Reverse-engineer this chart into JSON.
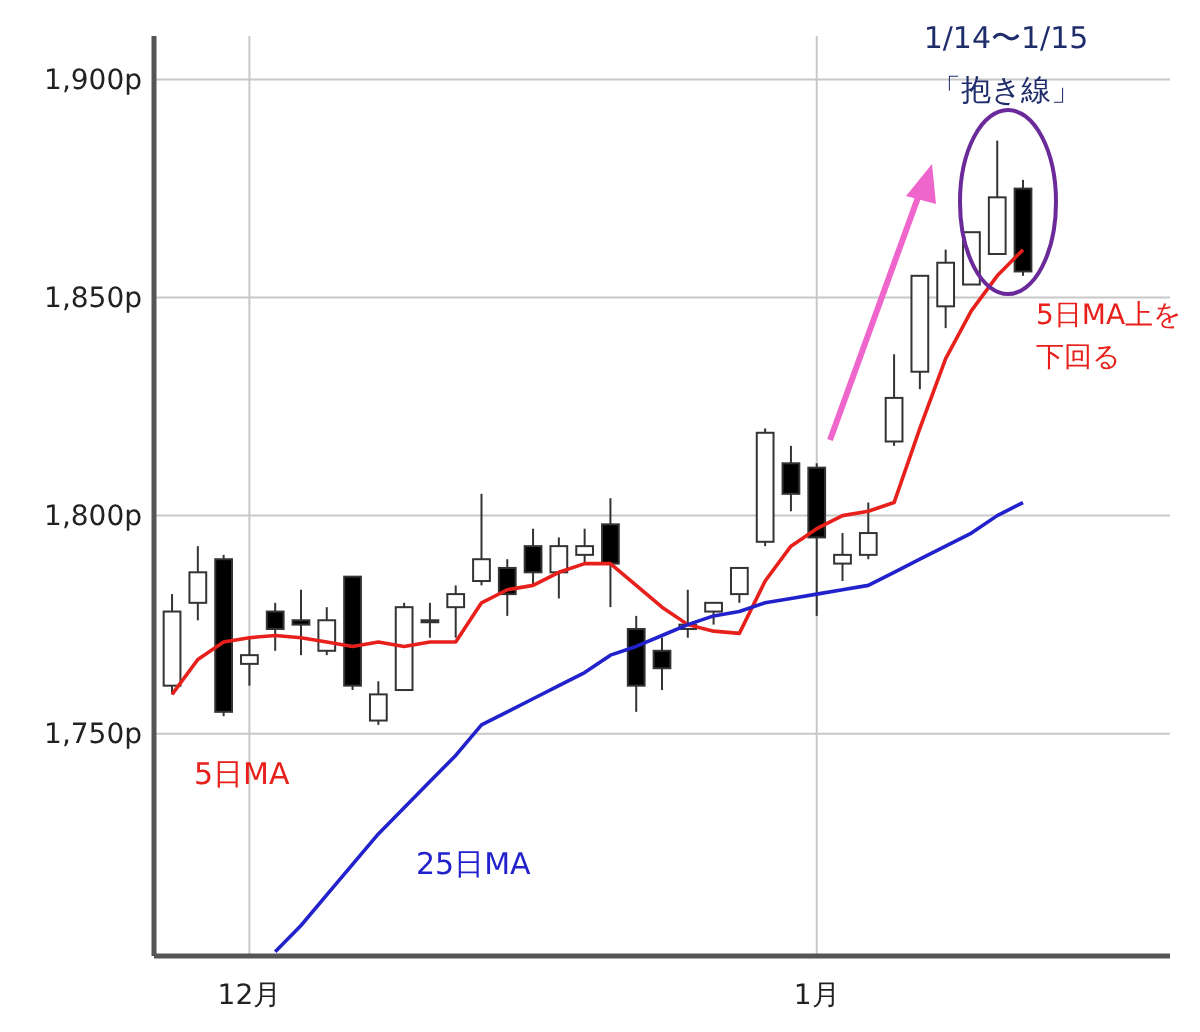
{
  "chart_data": {
    "type": "candlestick",
    "categories": [
      null,
      null,
      null,
      "12月",
      null,
      null,
      null,
      null,
      null,
      null,
      null,
      null,
      null,
      null,
      null,
      null,
      null,
      null,
      null,
      null,
      null,
      null,
      null,
      null,
      null,
      "1月",
      null,
      null,
      null,
      null,
      null,
      null,
      null,
      null
    ],
    "ohlc": [
      [
        1761,
        1782,
        1759,
        1778
      ],
      [
        1780,
        1793,
        1776,
        1787
      ],
      [
        1790,
        1791,
        1754,
        1755
      ],
      [
        1766,
        1772,
        1761,
        1768
      ],
      [
        1778,
        1780,
        1769,
        1774
      ],
      [
        1776,
        1783,
        1768,
        1775
      ],
      [
        1769,
        1779,
        1768,
        1776
      ],
      [
        1786,
        1786,
        1760,
        1761
      ],
      [
        1753,
        1762,
        1752,
        1759
      ],
      [
        1760,
        1780,
        1760,
        1779
      ],
      [
        1776,
        1780,
        1772,
        1776
      ],
      [
        1779,
        1784,
        1772,
        1782
      ],
      [
        1785,
        1805,
        1784,
        1790
      ],
      [
        1788,
        1790,
        1777,
        1782
      ],
      [
        1793,
        1797,
        1784,
        1787
      ],
      [
        1787,
        1795,
        1781,
        1793
      ],
      [
        1791,
        1797,
        1789,
        1793
      ],
      [
        1798,
        1804,
        1779,
        1789
      ],
      [
        1774,
        1777,
        1755,
        1761
      ],
      [
        1769,
        1772,
        1760,
        1765
      ],
      [
        1774,
        1783,
        1772,
        1775
      ],
      [
        1778,
        1780,
        1775,
        1780
      ],
      [
        1782,
        1788,
        1780,
        1788
      ],
      [
        1794,
        1820,
        1793,
        1819
      ],
      [
        1812,
        1816,
        1801,
        1805
      ],
      [
        1811,
        1812,
        1777,
        1795
      ],
      [
        1789,
        1796,
        1785,
        1791
      ],
      [
        1791,
        1803,
        1790,
        1796
      ],
      [
        1817,
        1837,
        1816,
        1827
      ],
      [
        1833,
        1855,
        1829,
        1855
      ],
      [
        1848,
        1861,
        1843,
        1858
      ],
      [
        1853,
        1865,
        1853,
        1865
      ],
      [
        1860,
        1886,
        1860,
        1873
      ],
      [
        1875,
        1877,
        1855,
        1856
      ]
    ],
    "series": [
      {
        "type": "line",
        "name": "5日MA",
        "color": "#e8201c",
        "values": [
          1759,
          1767,
          1771,
          1772,
          1772.5,
          1772,
          1771,
          1770,
          1771,
          1770,
          1771,
          1771,
          1780,
          1783,
          1784,
          1787,
          1789,
          1789,
          1784,
          1779,
          1775,
          1773.5,
          1773,
          1785,
          1793,
          1797,
          1800,
          1801,
          1803,
          1820,
          1836,
          1847,
          1855,
          1861
        ]
      },
      {
        "type": "line",
        "name": "25日MA",
        "color": "#2222cc",
        "values": [
          null,
          null,
          null,
          null,
          1700,
          1706,
          1713,
          1720,
          1727,
          1733,
          1739,
          1745,
          1752,
          1755,
          1758,
          1761,
          1764,
          1768,
          1770,
          1772.5,
          1775,
          1777,
          1778,
          1780,
          1781,
          1782,
          1783,
          1784,
          1787,
          1790,
          1793,
          1796,
          1800,
          1803
        ]
      }
    ],
    "ylim": [
      1699,
      1910
    ],
    "yticks": [
      {
        "value": 1750,
        "label": "1,750p"
      },
      {
        "value": 1800,
        "label": "1,800p"
      },
      {
        "value": 1850,
        "label": "1,850p"
      },
      {
        "value": 1900,
        "label": "1,900p"
      }
    ],
    "grid": true,
    "annotations": [
      "1/14〜1/15",
      "「抱き線」",
      "5日MA上を下回る"
    ]
  }
}
